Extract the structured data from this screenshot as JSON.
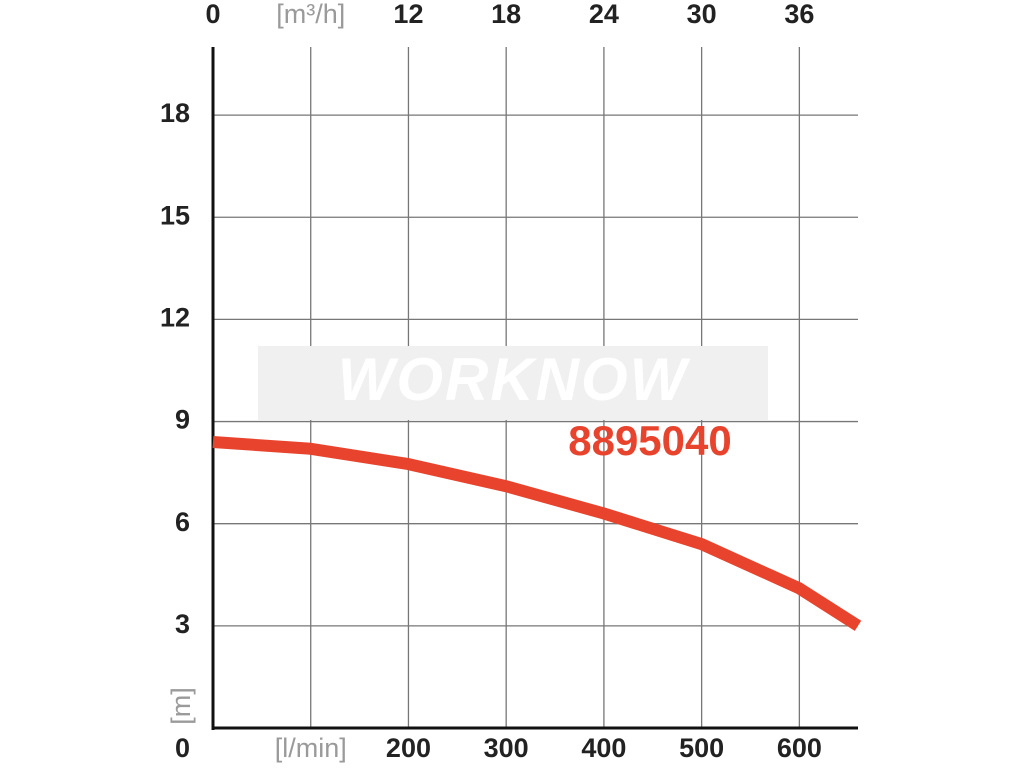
{
  "chart_data": {
    "type": "line",
    "watermark": "WORKNOW",
    "label": "8895040",
    "x_label": "[l/min]",
    "x2_label": "[m³/h]",
    "y_label": "[m]",
    "x": [
      0,
      100,
      200,
      300,
      400,
      500,
      600,
      660
    ],
    "series": [
      {
        "name": "8895040",
        "color": "#e8432d",
        "values": [
          8.4,
          8.2,
          7.75,
          7.1,
          6.3,
          5.4,
          4.1,
          3.0
        ]
      }
    ],
    "xlim": [
      0,
      660
    ],
    "xticks": [
      {
        "value": 100,
        "label": "[l/min]"
      },
      200,
      300,
      400,
      500,
      600
    ],
    "x2lim": [
      0,
      39.6
    ],
    "x2ticks": [
      0,
      {
        "value": 6,
        "label": "[m³/h]"
      },
      12,
      18,
      24,
      30,
      36
    ],
    "ylim": [
      0,
      20
    ],
    "yticks": [
      0,
      3,
      6,
      9,
      12,
      15,
      18
    ],
    "grid": true
  }
}
